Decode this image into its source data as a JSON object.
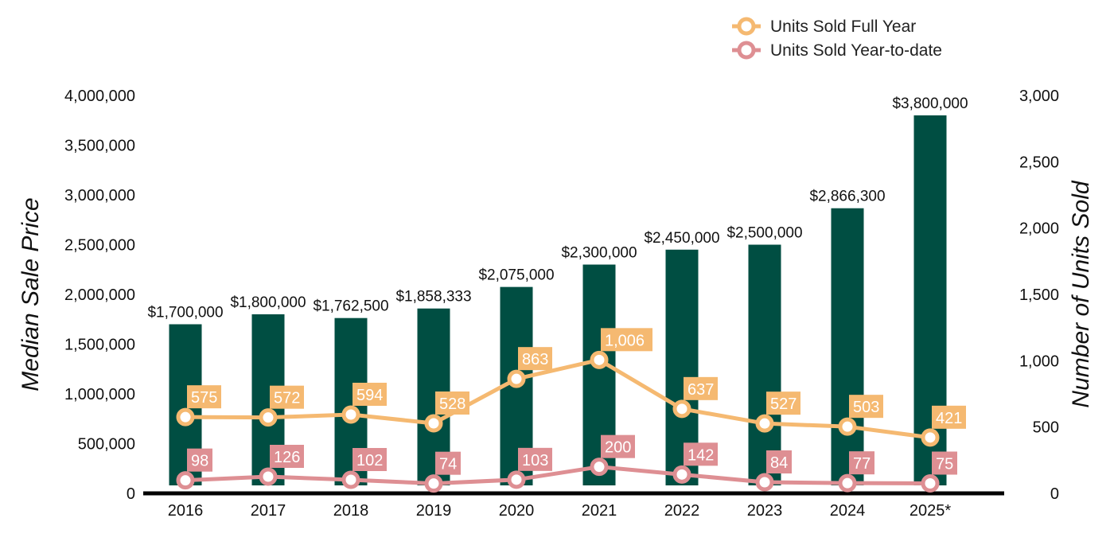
{
  "colors": {
    "bar": "#004e42",
    "full_year": "#f5b971",
    "ytd": "#de8f93",
    "axis": "#000000"
  },
  "chart_data": {
    "type": "bar",
    "categories": [
      "2016",
      "2017",
      "2018",
      "2019",
      "2020",
      "2021",
      "2022",
      "2023",
      "2024",
      "2025*"
    ],
    "ylabel": "Median Sale Price",
    "y2label": "Number of Units Sold",
    "ylim": [
      0,
      4000000
    ],
    "y2lim": [
      0,
      3000
    ],
    "yticks": [
      "0",
      "500,000",
      "1,000,000",
      "1,500,000",
      "2,000,000",
      "2,500,000",
      "3,000,000",
      "3,500,000",
      "4,000,000"
    ],
    "y2ticks": [
      "0",
      "500",
      "1,000",
      "1,500",
      "2,000",
      "2,500",
      "3,000"
    ],
    "legend_position": "top-right",
    "series": [
      {
        "name": "Median Sale Price",
        "kind": "bar",
        "axis": "left",
        "values": [
          1700000,
          1800000,
          1762500,
          1858333,
          2075000,
          2300000,
          2450000,
          2500000,
          2866300,
          3800000
        ],
        "labels": [
          "$1,700,000",
          "$1,800,000",
          "$1,762,500",
          "$1,858,333",
          "$2,075,000",
          "$2,300,000",
          "$2,450,000",
          "$2,500,000",
          "$2,866,300",
          "$3,800,000"
        ]
      },
      {
        "name": "Units Sold Full Year",
        "kind": "line",
        "axis": "right",
        "values": [
          575,
          572,
          594,
          528,
          863,
          1006,
          637,
          527,
          503,
          421
        ],
        "labels": [
          "575",
          "572",
          "594",
          "528",
          "863",
          "1,006",
          "637",
          "527",
          "503",
          "421"
        ]
      },
      {
        "name": "Units Sold Year-to-date",
        "kind": "line",
        "axis": "right",
        "values": [
          98,
          126,
          102,
          74,
          103,
          200,
          142,
          84,
          77,
          75
        ],
        "labels": [
          "98",
          "126",
          "102",
          "74",
          "103",
          "200",
          "142",
          "84",
          "77",
          "75"
        ]
      }
    ]
  }
}
